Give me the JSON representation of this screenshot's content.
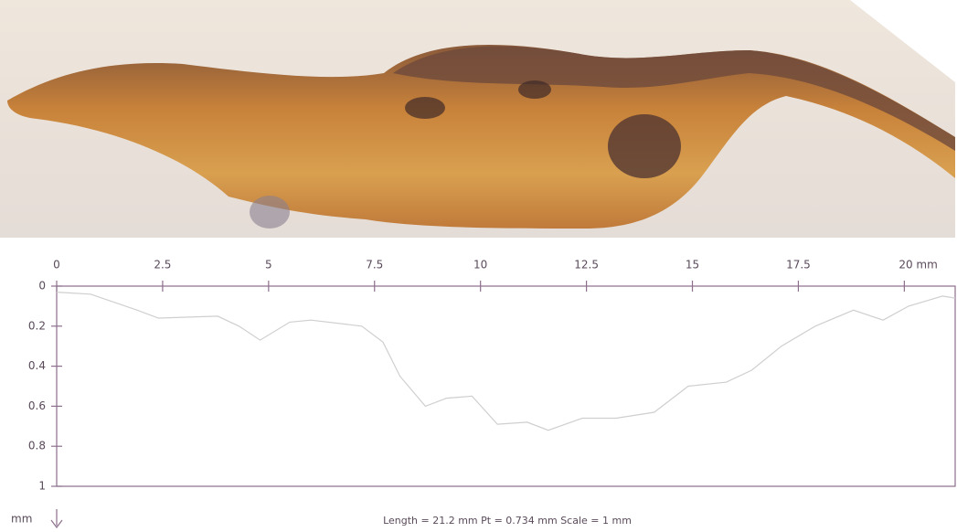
{
  "chart_data": {
    "type": "line",
    "x": [
      0,
      0.8,
      1.9,
      2.4,
      3.8,
      4.3,
      4.8,
      5.5,
      6.0,
      7.2,
      7.7,
      8.1,
      8.7,
      9.2,
      9.8,
      10.4,
      11.1,
      11.6,
      12.4,
      13.2,
      14.1,
      14.9,
      15.8,
      16.4,
      17.1,
      17.9,
      18.8,
      19.5,
      20.1,
      20.9,
      21.2
    ],
    "values": [
      0.03,
      0.04,
      0.12,
      0.16,
      0.15,
      0.2,
      0.27,
      0.18,
      0.17,
      0.2,
      0.28,
      0.45,
      0.6,
      0.56,
      0.55,
      0.69,
      0.68,
      0.72,
      0.66,
      0.66,
      0.63,
      0.5,
      0.48,
      0.42,
      0.3,
      0.2,
      0.12,
      0.17,
      0.1,
      0.05,
      0.06
    ],
    "color": "#cfcfcf",
    "xlim": [
      0,
      21.2
    ],
    "xticks": [
      0,
      2.5,
      5,
      7.5,
      10,
      12.5,
      15,
      17.5,
      {
        "value": 20,
        "label": "20 mm"
      }
    ],
    "ylim": [
      0,
      1
    ],
    "yticks": [
      0,
      0.2,
      0.4,
      0.6,
      0.8,
      1
    ],
    "y_inverted": true,
    "y_unit": "mm",
    "annotation": "Length = 21.2 mm  Pt = 0.734 mm  Scale = 1 mm"
  }
}
